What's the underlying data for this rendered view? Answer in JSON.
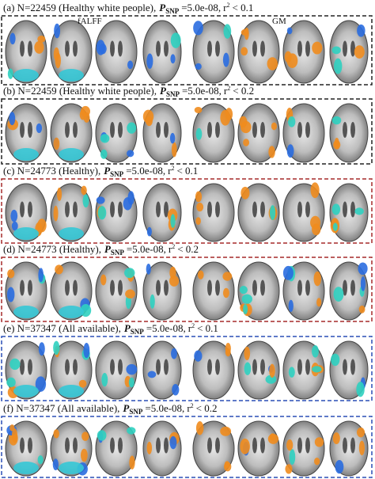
{
  "labels": {
    "falff": "fALFF",
    "gm": "GM"
  },
  "panels": [
    {
      "caption": "(a) N=22459 (Healthy white people),",
      "p_symbol": "P",
      "p_subscript": "SNP",
      "p_value": "=5.0e-08,",
      "r_symbol": "r",
      "r_superscript": "2",
      "threshold": "< 0.1",
      "box_color": "#222222"
    },
    {
      "caption": "(b) N=22459 (Healthy white people),",
      "p_symbol": "P",
      "p_subscript": "SNP",
      "p_value": "=5.0e-08,",
      "r_symbol": "r",
      "r_superscript": "2",
      "threshold": "< 0.2",
      "box_color": "#222222"
    },
    {
      "caption": "(c) N=24773 (Healthy),",
      "p_symbol": "P",
      "p_subscript": "SNP",
      "p_value": "=5.0e-08,",
      "r_symbol": "r",
      "r_superscript": "2",
      "threshold": "< 0.1",
      "box_color": "#a52a2a"
    },
    {
      "caption": "(d) N=24773 (Healthy),",
      "p_symbol": "P",
      "p_subscript": "SNP",
      "p_value": "=5.0e-08,",
      "r_symbol": "r",
      "r_superscript": "2",
      "threshold": "< 0.2",
      "box_color": "#a52a2a"
    },
    {
      "caption": "(e) N=37347 (All available),",
      "p_symbol": "P",
      "p_subscript": "SNP",
      "p_value": "=5.0e-08,",
      "r_symbol": "r",
      "r_superscript": "2",
      "threshold": "< 0.1",
      "box_color": "#2a4fb5"
    },
    {
      "caption": "(f) N=37347 (All available),",
      "p_symbol": "P",
      "p_subscript": "SNP",
      "p_value": "=5.0e-08,",
      "r_symbol": "r",
      "r_superscript": "2",
      "threshold": "< 0.2",
      "box_color": "#2a4fb5"
    }
  ]
}
